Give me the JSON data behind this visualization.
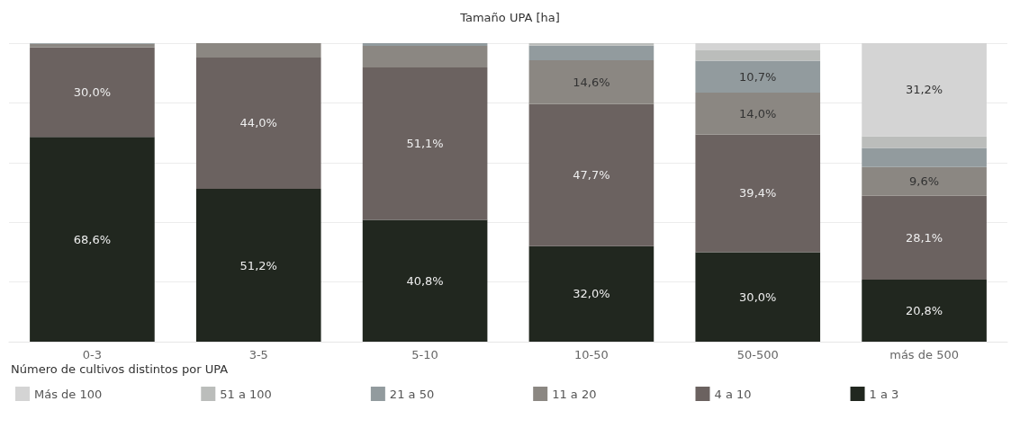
{
  "chart_data": {
    "type": "bar",
    "title": "Tamaño UPA [ha]",
    "legend_title": "Número de cultivos distintos por UPA",
    "categories": [
      "0-3",
      "3-5",
      "5-10",
      "10-50",
      "50-500",
      "más de 500"
    ],
    "stacked": true,
    "ylim": [
      0,
      100
    ],
    "yticks": [
      {
        "value": 0,
        "label": null
      },
      {
        "value": 20,
        "label": null
      },
      {
        "value": 40,
        "label": null
      },
      {
        "value": 60,
        "label": null
      },
      {
        "value": 80,
        "label": null
      },
      {
        "value": 100,
        "label": null
      }
    ],
    "tick_labels": "x",
    "grid": "y",
    "legend": "bottom left",
    "series": [
      {
        "name": "1 a 3",
        "color": "#21271f",
        "values": [
          68.6,
          51.2,
          40.8,
          32.0,
          30.0,
          20.8
        ],
        "value_labels": [
          "68,6%",
          "51,2%",
          "40,8%",
          "32,0%",
          "30,0%",
          "20,8%"
        ]
      },
      {
        "name": "4 a 10",
        "color": "#6b6260",
        "values": [
          30.0,
          44.0,
          51.1,
          47.7,
          39.4,
          28.1
        ],
        "value_labels": [
          "30,0%",
          "44,0%",
          "51,1%",
          "47,7%",
          "39,4%",
          "28,1%"
        ]
      },
      {
        "name": "11 a 20",
        "color": "#8b8782",
        "values": [
          1.2,
          4.8,
          7.2,
          14.6,
          14.0,
          9.6
        ],
        "value_labels": [
          null,
          null,
          null,
          "14,6%",
          "14,0%",
          "9,6%"
        ]
      },
      {
        "name": "21 a 50",
        "color": "#929b9e",
        "values": [
          0.2,
          0,
          0.9,
          4.9,
          10.7,
          6.4
        ],
        "value_labels": [
          null,
          null,
          null,
          null,
          "10,7%",
          null
        ]
      },
      {
        "name": "51 a 100",
        "color": "#bbbdbb",
        "values": [
          0,
          0,
          0,
          0.8,
          3.5,
          3.9
        ],
        "value_labels": [
          null,
          null,
          null,
          null,
          null,
          null
        ]
      },
      {
        "name": "Más de 100",
        "color": "#d4d4d4",
        "values": [
          0,
          0,
          0,
          null,
          2.4,
          31.2
        ],
        "value_labels": [
          null,
          null,
          null,
          null,
          null,
          "31,2%"
        ]
      }
    ]
  }
}
